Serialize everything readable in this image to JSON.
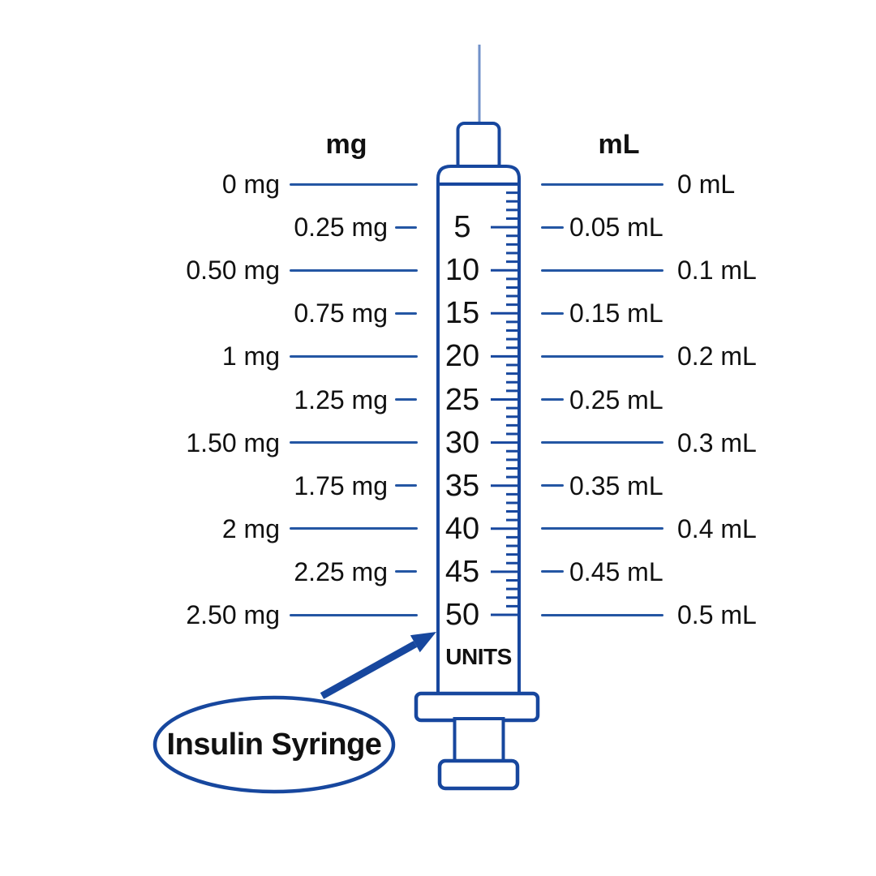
{
  "headers": {
    "left": "mg",
    "right": "mL"
  },
  "syringe": {
    "units_label": "UNITS",
    "callout_label": "Insulin Syringe",
    "scale": {
      "min_units": 0,
      "max_units": 50,
      "minor_step_units": 1,
      "labeled_step_units": 5
    }
  },
  "conversion_rows": [
    {
      "units": "",
      "mg": "0 mg",
      "ml": "0 mL",
      "major": true
    },
    {
      "units": "5",
      "mg": "0.25 mg",
      "ml": "0.05 mL",
      "major": false
    },
    {
      "units": "10",
      "mg": "0.50 mg",
      "ml": "0.1 mL",
      "major": true
    },
    {
      "units": "15",
      "mg": "0.75 mg",
      "ml": "0.15 mL",
      "major": false
    },
    {
      "units": "20",
      "mg": "1 mg",
      "ml": "0.2 mL",
      "major": true
    },
    {
      "units": "25",
      "mg": "1.25 mg",
      "ml": "0.25 mL",
      "major": false
    },
    {
      "units": "30",
      "mg": "1.50 mg",
      "ml": "0.3 mL",
      "major": true
    },
    {
      "units": "35",
      "mg": "1.75 mg",
      "ml": "0.35 mL",
      "major": false
    },
    {
      "units": "40",
      "mg": "2 mg",
      "ml": "0.4 mL",
      "major": true
    },
    {
      "units": "45",
      "mg": "2.25 mg",
      "ml": "0.45 mL",
      "major": false
    },
    {
      "units": "50",
      "mg": "2.50 mg",
      "ml": "0.5 mL",
      "major": true
    }
  ],
  "colors": {
    "outline": "#17479e",
    "connector_line": "#2456a3",
    "needle": "#7191c9",
    "text": "#111111"
  }
}
